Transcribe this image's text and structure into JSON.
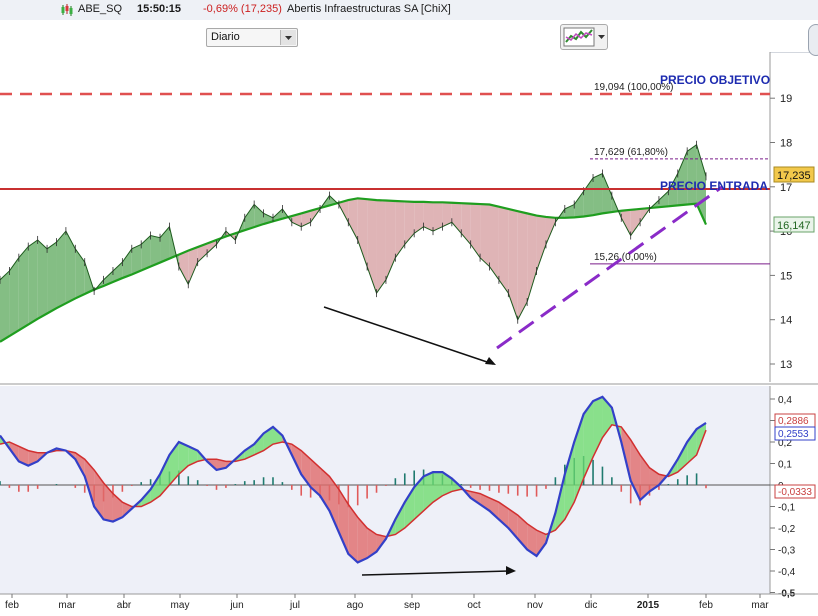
{
  "header": {
    "symbol": "ABE_SQ",
    "time": "15:50:15",
    "change": "-0,69% (17,235)",
    "name": "Abertis Infraestructuras SA [ChiX]",
    "timeframe": "Diario"
  },
  "colors": {
    "price_fill": "#6fb36f",
    "below_fill": "#d9a7a9",
    "ma_long": "#1f9e1f",
    "ma_short": "#b02020",
    "macd_line": "#3340c8",
    "signal_line": "#d23030",
    "target_line": "#e05050",
    "entry_line": "#c83030",
    "trend_line": "#8a2bc8"
  },
  "annotations": {
    "target_label": "PRECIO OBJETIVO",
    "entry_label": "PRECIO ENTRADA",
    "fib_100": "19,094 (100,00%)",
    "fib_618": "17,629 (61,80%)",
    "fib_0": "15,26 (0,00%)",
    "price_badge": "17,235",
    "ma_badge": "16,147"
  },
  "chart_data": [
    {
      "type": "area",
      "xlabel": "",
      "ylabel": "",
      "ylim": [
        12.6,
        20.0
      ],
      "y_ticks": [
        "13",
        "14",
        "15",
        "16",
        "17",
        "18",
        "19"
      ],
      "x_ticks": [
        "feb",
        "mar",
        "abr",
        "may",
        "jun",
        "jul",
        "ago",
        "sep",
        "oct",
        "nov",
        "dic",
        "2015",
        "feb",
        "mar"
      ],
      "series": [
        {
          "values": [
            14.9,
            15.1,
            15.4,
            15.65,
            15.8,
            15.6,
            15.75,
            16.0,
            15.6,
            15.3,
            14.65,
            14.9,
            15.1,
            15.3,
            15.6,
            15.7,
            15.9,
            15.85,
            16.1,
            15.2,
            14.8,
            15.3,
            15.5,
            15.7,
            16.0,
            15.8,
            16.3,
            16.6,
            16.4,
            16.3,
            16.5,
            16.2,
            16.1,
            16.2,
            16.5,
            16.8,
            16.6,
            16.2,
            15.8,
            15.2,
            14.6,
            14.9,
            15.4,
            15.7,
            15.95,
            16.1,
            16.0,
            16.1,
            16.2,
            15.95,
            15.7,
            15.4,
            15.2,
            14.9,
            14.6,
            14.0,
            14.4,
            15.1,
            15.7,
            16.2,
            16.5,
            16.6,
            16.9,
            17.2,
            17.3,
            16.8,
            16.3,
            15.9,
            16.2,
            16.5,
            16.7,
            16.9,
            17.3,
            17.8,
            17.95,
            17.235
          ]
        },
        {
          "values": [
            13.5,
            13.63,
            13.76,
            13.89,
            14.02,
            14.14,
            14.26,
            14.37,
            14.48,
            14.58,
            14.68,
            14.76,
            14.85,
            14.94,
            15.02,
            15.11,
            15.2,
            15.29,
            15.38,
            15.47,
            15.56,
            15.64,
            15.72,
            15.8,
            15.88,
            15.95,
            16.02,
            16.09,
            16.16,
            16.22,
            16.28,
            16.34,
            16.4,
            16.46,
            16.52,
            16.58,
            16.64,
            16.7,
            16.74,
            16.72,
            16.7,
            16.69,
            16.68,
            16.67,
            16.66,
            16.66,
            16.65,
            16.65,
            16.64,
            16.63,
            16.62,
            16.61,
            16.6,
            16.55,
            16.5,
            16.45,
            16.4,
            16.35,
            16.32,
            16.3,
            16.3,
            16.31,
            16.33,
            16.36,
            16.4,
            16.43,
            16.46,
            16.48,
            16.5,
            16.52,
            16.54,
            16.56,
            16.58,
            16.6,
            16.62,
            16.147
          ]
        }
      ]
    },
    {
      "type": "bar",
      "ylim": [
        -0.5,
        0.4
      ],
      "y_ticks": [
        "0,4",
        "0,3",
        "0,2",
        "0,1",
        "0",
        "-0,1",
        "-0,2",
        "-0,3",
        "-0,4",
        "-0,5"
      ],
      "series": [
        {
          "values": [
            0.23,
            0.17,
            0.11,
            0.09,
            0.11,
            0.15,
            0.17,
            0.16,
            0.12,
            0.04,
            -0.1,
            -0.16,
            -0.17,
            -0.15,
            -0.11,
            -0.07,
            -0.02,
            0.05,
            0.14,
            0.2,
            0.18,
            0.16,
            0.11,
            0.07,
            0.08,
            0.12,
            0.16,
            0.19,
            0.24,
            0.27,
            0.23,
            0.14,
            0.05,
            -0.01,
            -0.05,
            -0.12,
            -0.22,
            -0.32,
            -0.36,
            -0.34,
            -0.31,
            -0.25,
            -0.16,
            -0.08,
            -0.01,
            0.04,
            0.06,
            0.06,
            0.03,
            -0.01,
            -0.06,
            -0.09,
            -0.12,
            -0.16,
            -0.2,
            -0.25,
            -0.3,
            -0.33,
            -0.27,
            -0.13,
            0.05,
            0.2,
            0.33,
            0.39,
            0.41,
            0.36,
            0.2,
            0.02,
            -0.07,
            -0.03,
            0.0,
            0.05,
            0.12,
            0.2,
            0.26,
            0.2886
          ]
        },
        {
          "values": [
            0.19,
            0.2,
            0.18,
            0.16,
            0.15,
            0.15,
            0.16,
            0.16,
            0.15,
            0.12,
            0.07,
            0.01,
            -0.04,
            -0.08,
            -0.1,
            -0.1,
            -0.08,
            -0.05,
            0.0,
            0.05,
            0.09,
            0.11,
            0.12,
            0.12,
            0.11,
            0.11,
            0.12,
            0.14,
            0.16,
            0.19,
            0.2,
            0.19,
            0.16,
            0.12,
            0.08,
            0.04,
            -0.02,
            -0.09,
            -0.15,
            -0.2,
            -0.23,
            -0.24,
            -0.23,
            -0.2,
            -0.16,
            -0.12,
            -0.08,
            -0.05,
            -0.03,
            -0.02,
            -0.03,
            -0.04,
            -0.06,
            -0.08,
            -0.11,
            -0.14,
            -0.18,
            -0.21,
            -0.23,
            -0.21,
            -0.16,
            -0.08,
            0.03,
            0.13,
            0.22,
            0.28,
            0.27,
            0.21,
            0.14,
            0.08,
            0.05,
            0.04,
            0.06,
            0.1,
            0.14,
            0.2553
          ]
        },
        {
          "values": [
            0.04,
            -0.03,
            -0.07,
            -0.07,
            -0.04,
            0.0,
            0.01,
            0.0,
            -0.03,
            -0.08,
            -0.17,
            -0.17,
            -0.13,
            -0.07,
            -0.01,
            0.03,
            0.06,
            0.1,
            0.14,
            0.15,
            0.09,
            0.05,
            -0.01,
            -0.05,
            -0.03,
            0.01,
            0.04,
            0.05,
            0.08,
            0.08,
            0.03,
            -0.05,
            -0.11,
            -0.13,
            -0.13,
            -0.16,
            -0.2,
            -0.23,
            -0.21,
            -0.14,
            -0.08,
            -0.01,
            0.07,
            0.12,
            0.15,
            0.16,
            0.14,
            0.11,
            0.06,
            0.01,
            -0.03,
            -0.05,
            -0.06,
            -0.08,
            -0.09,
            -0.11,
            -0.12,
            -0.12,
            -0.04,
            0.08,
            0.21,
            0.28,
            0.3,
            0.26,
            0.19,
            0.08,
            -0.07,
            -0.19,
            -0.21,
            -0.11,
            -0.05,
            0.01,
            0.06,
            0.1,
            0.12,
            -0.0333
          ]
        }
      ],
      "badges": [
        "0,2886",
        "0,2553",
        "-0,0333"
      ]
    }
  ]
}
